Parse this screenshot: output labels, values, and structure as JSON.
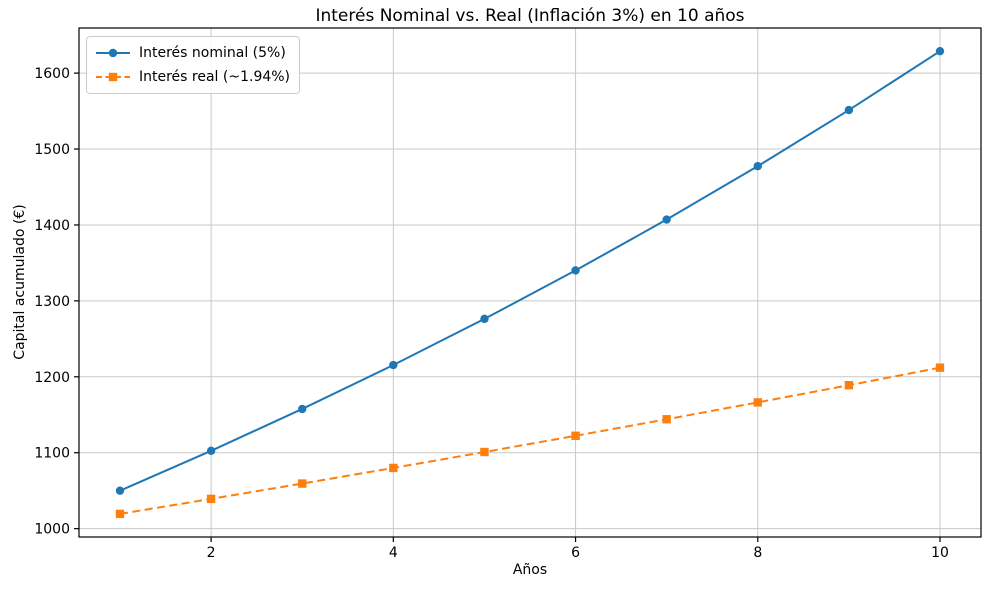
{
  "chart_data": {
    "type": "line",
    "title": "Interés Nominal vs. Real (Inflación 3%) en 10 años",
    "xlabel": "Años",
    "ylabel": "Capital acumulado (€)",
    "x": [
      1,
      2,
      3,
      4,
      5,
      6,
      7,
      8,
      9,
      10
    ],
    "series": [
      {
        "name": "Interés nominal (5%)",
        "color": "#1f77b4",
        "line_style": "solid",
        "marker": "circle",
        "values": [
          1050.0,
          1102.5,
          1157.63,
          1215.51,
          1276.28,
          1340.1,
          1407.1,
          1477.46,
          1551.33,
          1628.89
        ]
      },
      {
        "name": "Interés real (~1.94%)",
        "color": "#ff7f0e",
        "line_style": "dashed",
        "marker": "square",
        "values": [
          1019.42,
          1039.21,
          1059.39,
          1079.96,
          1100.93,
          1122.3,
          1144.09,
          1166.31,
          1188.95,
          1212.04
        ]
      }
    ],
    "xticks": [
      2,
      4,
      6,
      8,
      10
    ],
    "yticks": [
      1000,
      1100,
      1200,
      1300,
      1400,
      1500,
      1600
    ],
    "xlim": [
      0.55,
      10.45
    ],
    "ylim": [
      989,
      1659.4
    ],
    "grid": true,
    "grid_color": "#c9c9c9",
    "axis_color": "#000000",
    "tick_label_color": "#000000",
    "background": "#ffffff",
    "legend_position": "upper left"
  }
}
